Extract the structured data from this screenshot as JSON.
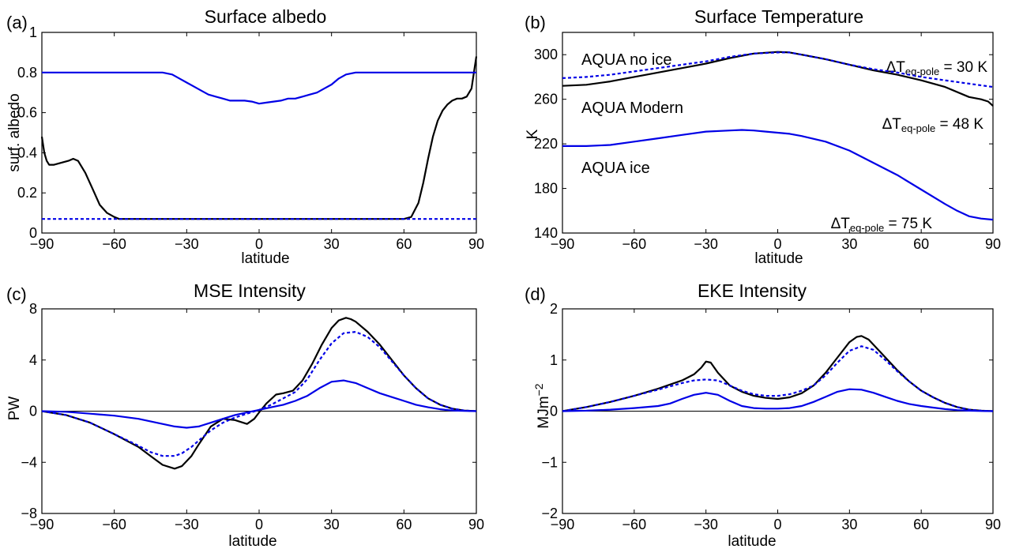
{
  "colors": {
    "black": "#000000",
    "blue": "#0000e6",
    "axis": "#000000"
  },
  "chart_data": [
    {
      "panel_label": "(a)",
      "type": "line",
      "title": "Surface albedo",
      "xlabel": "latitude",
      "ylabel": "surf. albedo",
      "xlim": [
        -90,
        90
      ],
      "ylim": [
        0,
        1
      ],
      "xticks": [
        "−90",
        "−60",
        "−30",
        "0",
        "30",
        "60",
        "90"
      ],
      "yticks": [
        "0",
        "0.2",
        "0.4",
        "0.6",
        "0.8",
        "1"
      ],
      "grid": false,
      "series": [
        {
          "color": "#000000",
          "dash": "solid",
          "x": [
            -90,
            -89,
            -88,
            -87,
            -85,
            -82,
            -79,
            -77,
            -75,
            -72,
            -69,
            -66,
            -63,
            -60,
            -58,
            -30,
            0,
            30,
            60,
            63,
            66,
            68,
            70,
            72,
            74,
            76,
            78,
            80,
            82,
            84,
            86,
            88,
            89,
            90
          ],
          "y": [
            0.48,
            0.4,
            0.36,
            0.34,
            0.34,
            0.35,
            0.36,
            0.37,
            0.36,
            0.3,
            0.22,
            0.14,
            0.1,
            0.08,
            0.07,
            0.07,
            0.07,
            0.07,
            0.07,
            0.08,
            0.15,
            0.25,
            0.37,
            0.48,
            0.56,
            0.61,
            0.64,
            0.66,
            0.67,
            0.67,
            0.68,
            0.72,
            0.8,
            0.88
          ]
        },
        {
          "color": "#0000e6",
          "dash": "solid",
          "x": [
            -90,
            -40,
            -36,
            -33,
            -30,
            -27,
            -24,
            -21,
            -18,
            -15,
            -12,
            -9,
            -6,
            -3,
            0,
            3,
            6,
            9,
            12,
            15,
            18,
            21,
            24,
            27,
            30,
            33,
            36,
            40,
            90
          ],
          "y": [
            0.8,
            0.8,
            0.79,
            0.77,
            0.75,
            0.73,
            0.71,
            0.69,
            0.68,
            0.67,
            0.66,
            0.66,
            0.66,
            0.655,
            0.645,
            0.65,
            0.655,
            0.66,
            0.67,
            0.67,
            0.68,
            0.69,
            0.7,
            0.72,
            0.74,
            0.77,
            0.79,
            0.8,
            0.8
          ]
        },
        {
          "color": "#0000e6",
          "dash": "dashed",
          "x": [
            -90,
            90
          ],
          "y": [
            0.07,
            0.07
          ]
        }
      ],
      "annotations": []
    },
    {
      "panel_label": "(b)",
      "type": "line",
      "title": "Surface Temperature",
      "xlabel": "latitude",
      "ylabel": "K",
      "xlim": [
        -90,
        90
      ],
      "ylim": [
        140,
        320
      ],
      "xticks": [
        "−90",
        "−60",
        "−30",
        "0",
        "30",
        "60",
        "90"
      ],
      "yticks": [
        "140",
        "180",
        "220",
        "260",
        "300"
      ],
      "grid": false,
      "series": [
        {
          "color": "#000000",
          "dash": "solid",
          "x": [
            -90,
            -80,
            -70,
            -60,
            -50,
            -40,
            -30,
            -20,
            -10,
            0,
            5,
            10,
            20,
            30,
            40,
            50,
            60,
            70,
            80,
            85,
            88,
            90
          ],
          "y": [
            272,
            273,
            276,
            280,
            284,
            288,
            292,
            297,
            301,
            302.5,
            302,
            300,
            296,
            291,
            286,
            282,
            277,
            271,
            262,
            260,
            258,
            254
          ]
        },
        {
          "color": "#0000e6",
          "dash": "dashed",
          "x": [
            -90,
            -80,
            -70,
            -60,
            -50,
            -40,
            -30,
            -20,
            -10,
            0,
            5,
            10,
            20,
            30,
            40,
            50,
            60,
            70,
            80,
            90
          ],
          "y": [
            279,
            280,
            282,
            285,
            288,
            291,
            294,
            298,
            301,
            302,
            302,
            300,
            296,
            291,
            287,
            284,
            280,
            277,
            274,
            271
          ]
        },
        {
          "color": "#0000e6",
          "dash": "solid",
          "x": [
            -90,
            -80,
            -70,
            -60,
            -50,
            -40,
            -30,
            -20,
            -15,
            -10,
            -5,
            0,
            5,
            10,
            20,
            30,
            40,
            50,
            60,
            70,
            75,
            80,
            85,
            90
          ],
          "y": [
            218,
            218,
            219,
            222,
            225,
            228,
            231,
            232,
            232.5,
            232,
            231,
            230,
            229,
            227,
            222,
            214,
            203,
            192,
            179,
            166,
            160,
            155,
            153,
            152
          ]
        }
      ],
      "annotations": [
        {
          "text": "AQUA no ice",
          "color": "#0000e6"
        },
        {
          "text": "AQUA Modern",
          "color": "#000000"
        },
        {
          "text": "AQUA ice",
          "color": "#0000e6"
        },
        {
          "prefix": "ΔT",
          "sub": "eq-pole",
          "suffix": " = 30 K",
          "color": "#0000e6"
        },
        {
          "prefix": "ΔT",
          "sub": "eq-pole",
          "suffix": " = 48 K",
          "color": "#000000"
        },
        {
          "prefix": "ΔT",
          "sub": "eq-pole",
          "suffix": " = 75 K",
          "color": "#0000e6"
        }
      ]
    },
    {
      "panel_label": "(c)",
      "type": "line",
      "title": "MSE Intensity",
      "xlabel": "latitude",
      "ylabel": "PW",
      "xlim": [
        -90,
        90
      ],
      "ylim": [
        -8,
        8
      ],
      "xticks": [
        "−90",
        "−60",
        "−30",
        "0",
        "30",
        "60",
        "90"
      ],
      "yticks": [
        "−8",
        "−4",
        "0",
        "4",
        "8"
      ],
      "zero_line": true,
      "grid": false,
      "series": [
        {
          "color": "#000000",
          "dash": "solid",
          "x": [
            -90,
            -80,
            -70,
            -60,
            -50,
            -45,
            -40,
            -35,
            -32,
            -28,
            -25,
            -20,
            -15,
            -10,
            -5,
            -2,
            0,
            3,
            7,
            10,
            14,
            18,
            22,
            26,
            30,
            33,
            36,
            38,
            40,
            45,
            50,
            55,
            60,
            65,
            70,
            75,
            80,
            85,
            90
          ],
          "y": [
            0,
            -0.3,
            -0.9,
            -1.8,
            -2.8,
            -3.5,
            -4.2,
            -4.5,
            -4.3,
            -3.5,
            -2.6,
            -1.2,
            -0.6,
            -0.7,
            -1.0,
            -0.6,
            -0.1,
            0.6,
            1.3,
            1.4,
            1.6,
            2.4,
            3.7,
            5.2,
            6.5,
            7.1,
            7.3,
            7.2,
            7.0,
            6.2,
            5.2,
            4.0,
            2.8,
            1.8,
            1.0,
            0.5,
            0.2,
            0.05,
            0
          ]
        },
        {
          "color": "#0000e6",
          "dash": "dashed",
          "x": [
            -90,
            -80,
            -70,
            -60,
            -50,
            -45,
            -40,
            -35,
            -32,
            -28,
            -25,
            -20,
            -15,
            -10,
            -5,
            0,
            5,
            10,
            15,
            20,
            25,
            30,
            35,
            40,
            45,
            50,
            55,
            60,
            65,
            70,
            75,
            80,
            85,
            90
          ],
          "y": [
            0,
            -0.3,
            -0.9,
            -1.8,
            -2.7,
            -3.2,
            -3.5,
            -3.5,
            -3.3,
            -2.8,
            -2.3,
            -1.5,
            -0.9,
            -0.5,
            -0.2,
            0.1,
            0.5,
            1.0,
            1.5,
            2.5,
            4.0,
            5.3,
            6.1,
            6.2,
            5.8,
            5.0,
            3.9,
            2.8,
            1.8,
            1.0,
            0.5,
            0.2,
            0.05,
            0
          ]
        },
        {
          "color": "#0000e6",
          "dash": "solid",
          "x": [
            -90,
            -80,
            -70,
            -60,
            -50,
            -40,
            -35,
            -30,
            -25,
            -20,
            -15,
            -10,
            -5,
            0,
            5,
            10,
            15,
            20,
            25,
            30,
            35,
            40,
            45,
            50,
            55,
            60,
            65,
            70,
            75,
            80,
            85,
            90
          ],
          "y": [
            0,
            -0.05,
            -0.2,
            -0.35,
            -0.6,
            -1.0,
            -1.2,
            -1.3,
            -1.2,
            -0.9,
            -0.6,
            -0.3,
            -0.1,
            0.1,
            0.3,
            0.5,
            0.8,
            1.2,
            1.8,
            2.3,
            2.4,
            2.2,
            1.8,
            1.4,
            1.1,
            0.8,
            0.5,
            0.3,
            0.15,
            0.05,
            0.02,
            0
          ]
        }
      ],
      "annotations": []
    },
    {
      "panel_label": "(d)",
      "type": "line",
      "title": "EKE Intensity",
      "xlabel": "latitude",
      "ylabel": "MJm",
      "ylabel_sup": "−2",
      "xlim": [
        -90,
        90
      ],
      "ylim": [
        -2,
        2
      ],
      "xticks": [
        "−90",
        "−60",
        "−30",
        "0",
        "30",
        "60",
        "90"
      ],
      "yticks": [
        "−2",
        "−1",
        "0",
        "1",
        "2"
      ],
      "zero_line": true,
      "grid": false,
      "series": [
        {
          "color": "#000000",
          "dash": "solid",
          "x": [
            -90,
            -80,
            -70,
            -60,
            -50,
            -40,
            -35,
            -32,
            -30,
            -28,
            -25,
            -20,
            -15,
            -10,
            -5,
            0,
            5,
            10,
            15,
            20,
            25,
            30,
            33,
            35,
            38,
            40,
            45,
            50,
            55,
            60,
            65,
            70,
            75,
            80,
            85,
            90
          ],
          "y": [
            0,
            0.08,
            0.18,
            0.3,
            0.44,
            0.6,
            0.72,
            0.85,
            0.97,
            0.95,
            0.75,
            0.5,
            0.38,
            0.3,
            0.26,
            0.24,
            0.27,
            0.35,
            0.5,
            0.75,
            1.05,
            1.35,
            1.45,
            1.47,
            1.4,
            1.3,
            1.05,
            0.8,
            0.58,
            0.4,
            0.27,
            0.16,
            0.08,
            0.03,
            0.01,
            0
          ]
        },
        {
          "color": "#0000e6",
          "dash": "dashed",
          "x": [
            -90,
            -80,
            -70,
            -60,
            -50,
            -40,
            -35,
            -30,
            -25,
            -20,
            -15,
            -10,
            -5,
            0,
            5,
            10,
            15,
            20,
            25,
            30,
            35,
            40,
            45,
            50,
            55,
            60,
            65,
            70,
            75,
            80,
            85,
            90
          ],
          "y": [
            0,
            0.08,
            0.18,
            0.3,
            0.42,
            0.55,
            0.6,
            0.62,
            0.6,
            0.5,
            0.4,
            0.33,
            0.3,
            0.3,
            0.33,
            0.4,
            0.5,
            0.7,
            0.95,
            1.18,
            1.27,
            1.2,
            1.0,
            0.78,
            0.58,
            0.4,
            0.27,
            0.16,
            0.08,
            0.03,
            0.01,
            0
          ]
        },
        {
          "color": "#0000e6",
          "dash": "solid",
          "x": [
            -90,
            -80,
            -70,
            -60,
            -50,
            -45,
            -40,
            -35,
            -30,
            -25,
            -20,
            -15,
            -10,
            -5,
            0,
            5,
            10,
            15,
            20,
            25,
            30,
            35,
            40,
            45,
            50,
            55,
            60,
            65,
            70,
            75,
            80,
            85,
            90
          ],
          "y": [
            0,
            0.01,
            0.03,
            0.06,
            0.1,
            0.15,
            0.24,
            0.32,
            0.36,
            0.32,
            0.2,
            0.1,
            0.06,
            0.05,
            0.05,
            0.06,
            0.1,
            0.18,
            0.28,
            0.38,
            0.43,
            0.42,
            0.36,
            0.28,
            0.2,
            0.14,
            0.1,
            0.07,
            0.04,
            0.02,
            0.01,
            0.003,
            0
          ]
        }
      ],
      "annotations": []
    }
  ]
}
